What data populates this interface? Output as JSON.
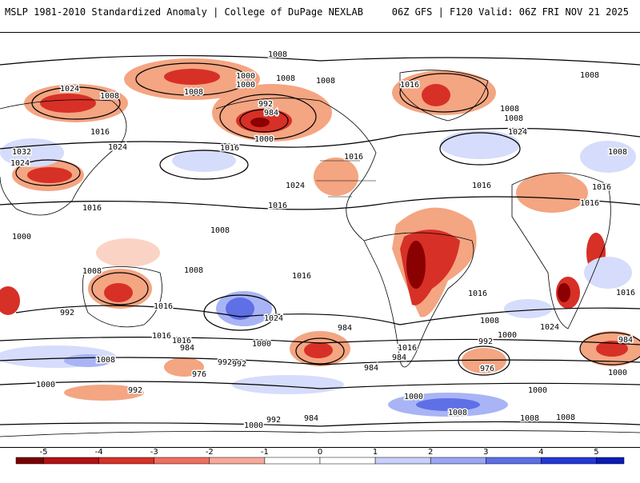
{
  "header": {
    "title_left": "MSLP 1981-2010 Standardized Anomaly | College of DuPage NEXLAB",
    "title_right": "06Z GFS | F120 Valid: 06Z FRI NOV 21 2025"
  },
  "map": {
    "isobar_labels": [
      "1008",
      "1000",
      "1008",
      "1000",
      "1008",
      "1008",
      "1016",
      "1024",
      "992",
      "984",
      "1000",
      "1032",
      "1024",
      "1016",
      "1016",
      "1024",
      "1008",
      "1016",
      "1024",
      "1016",
      "1008",
      "1008",
      "1008",
      "1008",
      "1016",
      "1016",
      "1008",
      "1016",
      "1024",
      "1016",
      "1000",
      "1008",
      "992",
      "1016",
      "1008",
      "1016",
      "1000",
      "984",
      "976",
      "992",
      "984",
      "976",
      "984",
      "992",
      "1008",
      "1000",
      "992",
      "992",
      "1000",
      "984",
      "984",
      "1000",
      "1008",
      "1008",
      "1000",
      "1016",
      "1016",
      "1024",
      "1016",
      "1016",
      "1000",
      "1024",
      "1008",
      "1016",
      "992",
      "984",
      "1000",
      "1008"
    ],
    "colors": {
      "neg_strong": "#8b0000",
      "neg_mid": "#d73027",
      "neg_light": "#f4a582",
      "neg_faint": "#fbd3c4",
      "pos_faint": "#d6dcfb",
      "pos_light": "#a8b4f5",
      "pos_mid": "#5f6fe6",
      "pos_strong": "#1a2bd4",
      "land_line": "#000000",
      "isobar": "#000000"
    }
  },
  "legend": {
    "ticks": [
      "-5",
      "-4",
      "-3",
      "-2",
      "-1",
      "0",
      "1",
      "2",
      "3",
      "4",
      "5"
    ],
    "tick_values": [
      -5,
      -4,
      -3,
      -2,
      -1,
      0,
      1,
      2,
      3,
      4,
      5
    ],
    "range": [
      -5.5,
      5.5
    ],
    "bins": [
      {
        "from": -5.5,
        "to": -5,
        "color": "#7a0000"
      },
      {
        "from": -5,
        "to": -4,
        "color": "#b40f12"
      },
      {
        "from": -4,
        "to": -3,
        "color": "#d73027"
      },
      {
        "from": -3,
        "to": -2,
        "color": "#ef6f5e"
      },
      {
        "from": -2,
        "to": -1,
        "color": "#f7a99b"
      },
      {
        "from": -1,
        "to": 0,
        "color": "#ffffff"
      },
      {
        "from": 0,
        "to": 1,
        "color": "#ffffff"
      },
      {
        "from": 1,
        "to": 2,
        "color": "#c9d0fb"
      },
      {
        "from": 2,
        "to": 3,
        "color": "#9aa6f4"
      },
      {
        "from": 3,
        "to": 4,
        "color": "#5c6ee6"
      },
      {
        "from": 4,
        "to": 5,
        "color": "#2238d8"
      },
      {
        "from": 5,
        "to": 5.5,
        "color": "#0a1bb8"
      }
    ]
  }
}
